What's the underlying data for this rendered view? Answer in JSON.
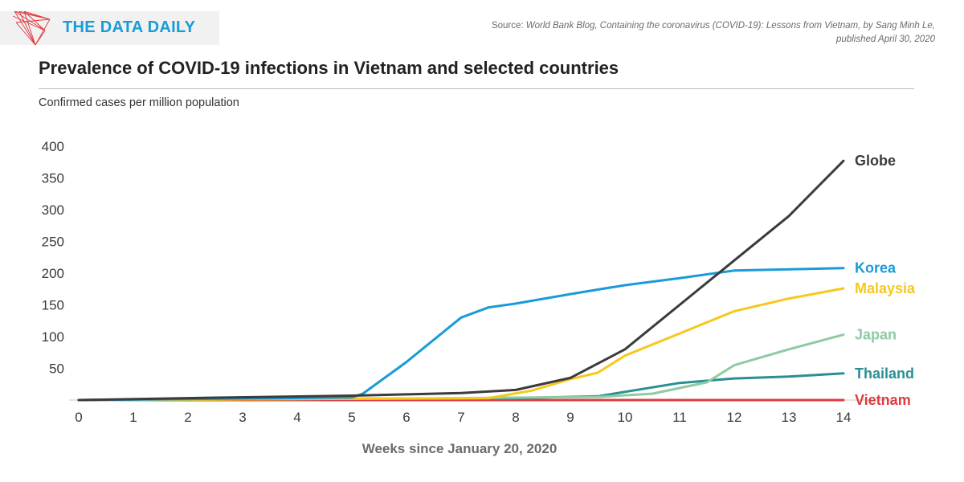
{
  "brand": {
    "name": "THE DATA DAILY",
    "color": "#1a9bd7",
    "logo_icon": "red-wireframe-logo"
  },
  "source": {
    "prefix": "Source: ",
    "publication": "World Bank Blog, Containing the coronavirus (COVID-19): Lessons from Vietnam, by Sang Minh Le, published April 30, 2020"
  },
  "chart_data": {
    "type": "line",
    "title": "Prevalence of COVID-19 infections in Vietnam and selected countries",
    "subtitle": "Confirmed cases per million population",
    "xlabel": "Weeks since January 20, 2020",
    "ylabel": "",
    "xlim": [
      0,
      14
    ],
    "ylim": [
      0,
      400
    ],
    "x_ticks": [
      0,
      1,
      2,
      3,
      4,
      5,
      6,
      7,
      8,
      9,
      10,
      11,
      12,
      13,
      14
    ],
    "y_ticks": [
      50,
      100,
      150,
      200,
      250,
      300,
      350,
      400
    ],
    "grid": false,
    "legend": "direct labels at line ends",
    "series": [
      {
        "name": "Vietnam",
        "color": "#e03a3e",
        "points": [
          [
            0,
            0
          ],
          [
            2,
            0
          ],
          [
            4,
            0
          ],
          [
            6,
            0
          ],
          [
            8,
            0
          ],
          [
            10,
            0
          ],
          [
            12,
            0
          ],
          [
            14,
            0
          ]
        ]
      },
      {
        "name": "Thailand",
        "color": "#2a8f93",
        "points": [
          [
            0,
            0
          ],
          [
            5,
            2
          ],
          [
            7.5,
            2
          ],
          [
            9.5,
            6
          ],
          [
            11,
            27
          ],
          [
            12,
            34
          ],
          [
            13,
            37
          ],
          [
            14,
            42
          ]
        ]
      },
      {
        "name": "Japan",
        "color": "#8ecba2",
        "points": [
          [
            0,
            0
          ],
          [
            5,
            2
          ],
          [
            7,
            3
          ],
          [
            9.5,
            5
          ],
          [
            10.5,
            10
          ],
          [
            11.5,
            28
          ],
          [
            12,
            55
          ],
          [
            13,
            80
          ],
          [
            14,
            103
          ]
        ]
      },
      {
        "name": "Malaysia",
        "color": "#f7c81c",
        "points": [
          [
            0,
            0
          ],
          [
            5,
            2
          ],
          [
            7.5,
            3
          ],
          [
            8.3,
            15
          ],
          [
            9,
            33
          ],
          [
            9.5,
            43
          ],
          [
            10,
            70
          ],
          [
            11,
            105
          ],
          [
            12,
            140
          ],
          [
            13,
            160
          ],
          [
            14,
            176
          ]
        ]
      },
      {
        "name": "Korea",
        "color": "#1a9bd7",
        "points": [
          [
            0,
            0
          ],
          [
            5,
            4
          ],
          [
            5.2,
            10
          ],
          [
            6,
            60
          ],
          [
            7,
            130
          ],
          [
            7.5,
            146
          ],
          [
            8,
            152
          ],
          [
            9,
            167
          ],
          [
            9.5,
            174
          ],
          [
            10,
            181
          ],
          [
            11,
            192
          ],
          [
            12,
            204
          ],
          [
            13,
            206
          ],
          [
            14,
            208
          ]
        ]
      },
      {
        "name": "Globe",
        "color": "#3b3b3b",
        "points": [
          [
            0,
            0
          ],
          [
            2,
            3
          ],
          [
            5,
            7
          ],
          [
            6,
            9
          ],
          [
            7,
            11
          ],
          [
            8,
            16
          ],
          [
            9,
            35
          ],
          [
            10,
            80
          ],
          [
            11,
            150
          ],
          [
            12,
            220
          ],
          [
            13,
            290
          ],
          [
            14,
            377
          ]
        ]
      }
    ]
  }
}
